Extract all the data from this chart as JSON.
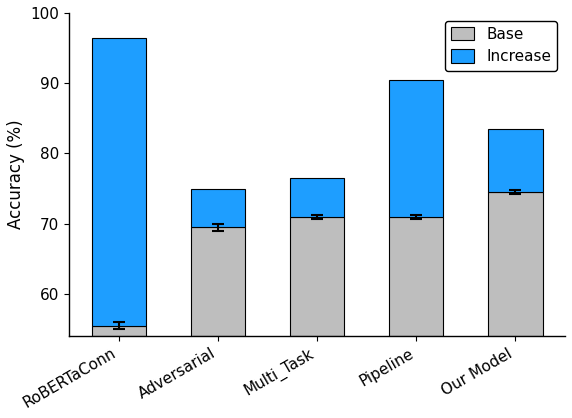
{
  "categories": [
    "RoBERTaConn",
    "Adversarial",
    "Multi_Task",
    "Pipeline",
    "Our Model"
  ],
  "base_values": [
    55.5,
    69.5,
    71.0,
    71.0,
    74.5
  ],
  "total_values": [
    96.5,
    75.0,
    76.5,
    90.5,
    83.5
  ],
  "error_values": [
    0.5,
    0.5,
    0.3,
    0.3,
    0.3
  ],
  "base_color": "#bebebe",
  "increase_color": "#1e9eff",
  "ylabel": "Accuracy (%)",
  "ymin": 54,
  "ymax": 100,
  "yticks": [
    60,
    70,
    80,
    90,
    100
  ],
  "legend_labels": [
    "Base",
    "Increase"
  ],
  "bar_width": 0.55,
  "background_color": "#ffffff",
  "figsize": [
    5.72,
    4.18
  ],
  "dpi": 100
}
